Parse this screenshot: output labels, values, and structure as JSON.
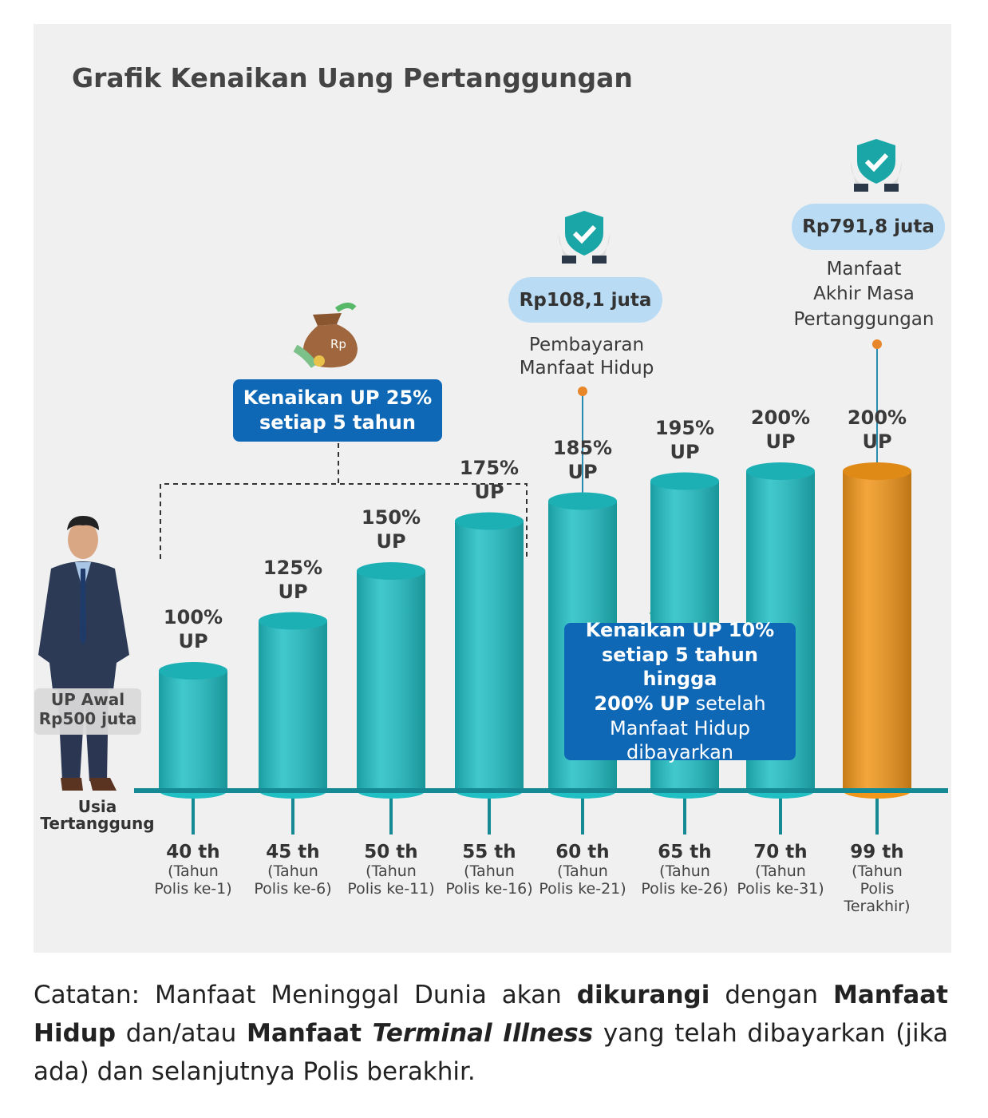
{
  "chart_data": {
    "type": "bar",
    "title": "Grafik Kenaikan Uang Pertanggungan",
    "categories": [
      "40 th",
      "45 th",
      "50 th",
      "55 th",
      "60 th",
      "65 th",
      "70 th",
      "99 th"
    ],
    "sublabels": [
      "(Tahun\nPolis ke-1)",
      "(Tahun\nPolis ke-6)",
      "(Tahun\nPolis ke-11)",
      "(Tahun\nPolis ke-16)",
      "(Tahun\nPolis ke-21)",
      "(Tahun\nPolis ke-26)",
      "(Tahun\nPolis ke-31)",
      "(Tahun\nPolis\nTerakhir)"
    ],
    "values": [
      100,
      125,
      150,
      175,
      185,
      195,
      200,
      200
    ],
    "value_labels": [
      "100%\nUP",
      "125%\nUP",
      "150%\nUP",
      "175%\nUP",
      "185%\nUP",
      "195%\nUP",
      "200%\nUP",
      "200%\nUP"
    ],
    "colors": [
      "#1fbfc4",
      "#1fbfc4",
      "#1fbfc4",
      "#1fbfc4",
      "#1fbfc4",
      "#1fbfc4",
      "#1fbfc4",
      "#f2961a"
    ],
    "x_axis_label": "Usia\nTertanggung",
    "start_badge": "UP Awal\nRp500 juta",
    "callout_increase": "Kenaikan UP 25%\nsetiap 5 tahun",
    "living_benefit_amount": "Rp108,1 juta",
    "living_benefit_label": "Pembayaran\nManfaat Hidup",
    "maturity_amount": "Rp791,8 juta",
    "maturity_label": "Manfaat\nAkhir Masa\nPertanggungan",
    "callout_after": [
      {
        "text": "Kenaikan UP 10%\nsetiap 5 tahun hingga\n200% UP",
        "style": "bold"
      },
      {
        "text": " setelah\nManfaat Hidup\ndibayarkan",
        "style": "normal"
      }
    ]
  },
  "note": [
    {
      "text": "Catatan: Manfaat Meninggal Dunia akan ",
      "style": "normal"
    },
    {
      "text": "dikurangi",
      "style": "bold"
    },
    {
      "text": " dengan ",
      "style": "normal"
    },
    {
      "text": "Manfaat Hidup",
      "style": "bold"
    },
    {
      "text": " dan/atau ",
      "style": "normal"
    },
    {
      "text": "Manfaat ",
      "style": "bold"
    },
    {
      "text": "Terminal Illness",
      "style": "bold-italic"
    },
    {
      "text": " yang telah dibayarkan (jika ada) dan selanjutnya Polis berakhir.",
      "style": "normal"
    }
  ]
}
